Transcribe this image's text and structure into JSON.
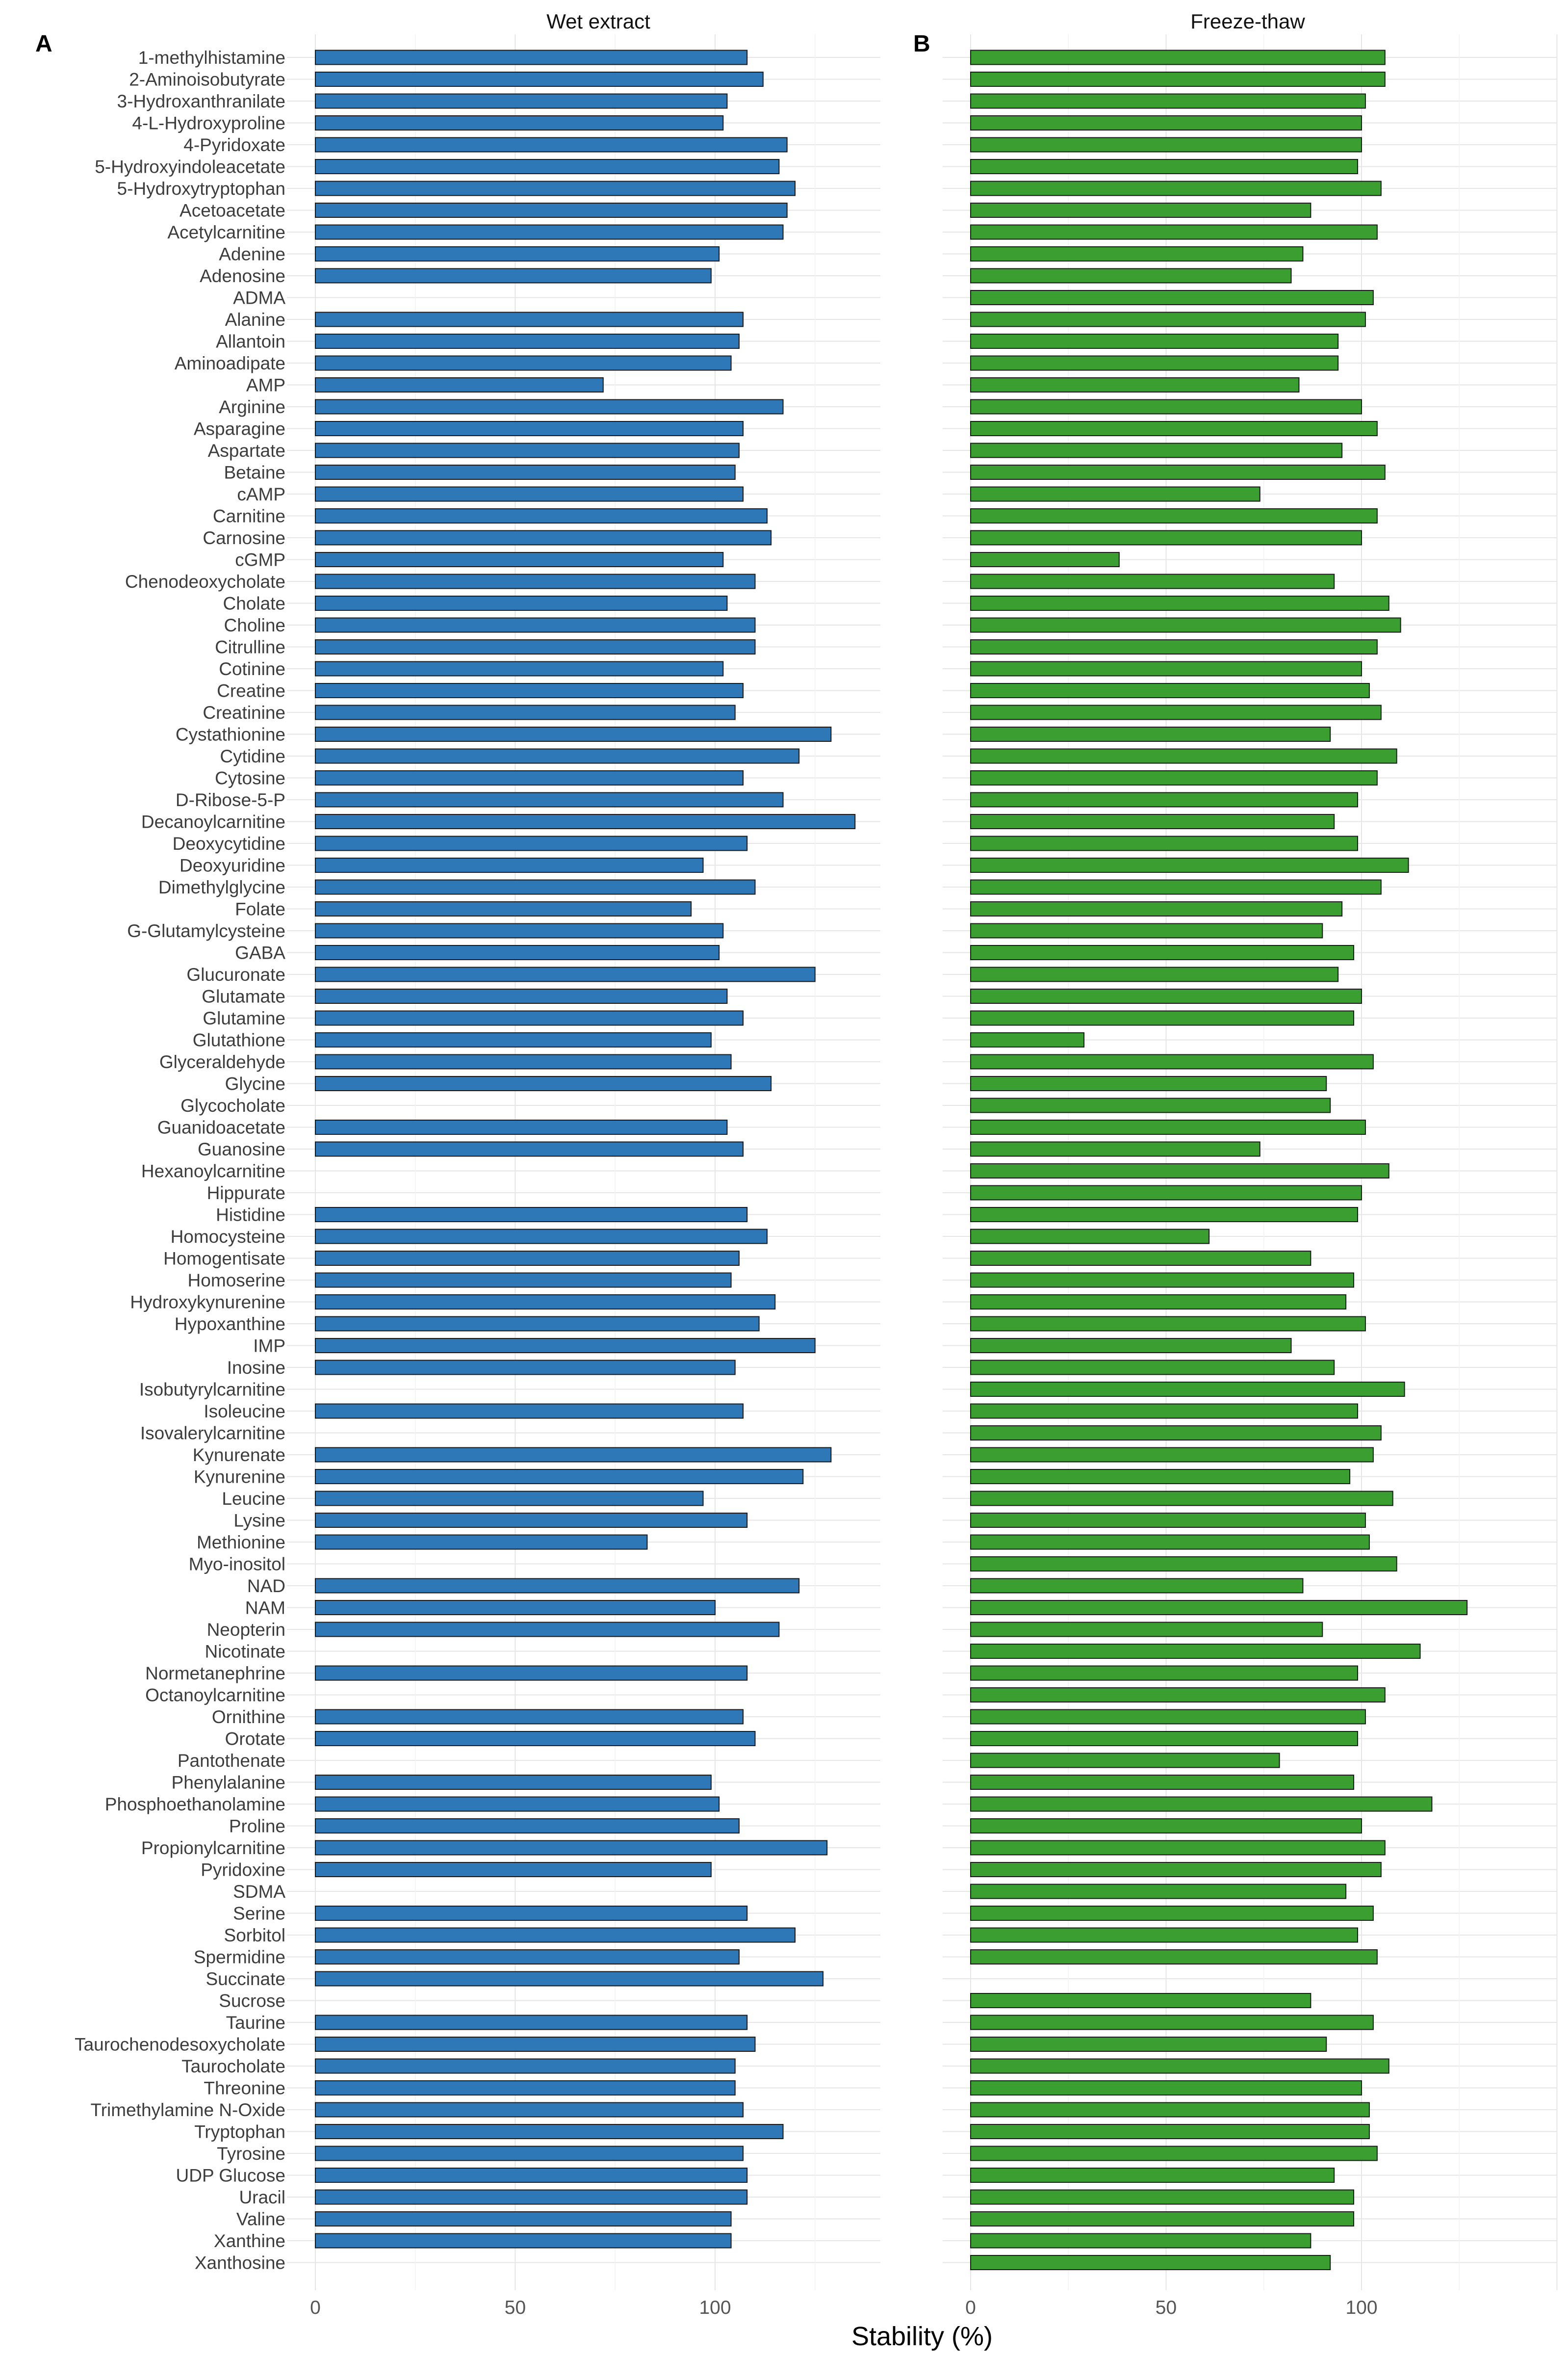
{
  "figure": {
    "xlabel": "Stability (%)",
    "colors": {
      "panel_a": "#2e78b8",
      "panel_b": "#3a9e31",
      "bar_outline": "#1a1a1a"
    }
  },
  "chart_data": [
    {
      "type": "bar",
      "orientation": "horizontal",
      "panel_letter": "A",
      "title": "Wet extract",
      "xlabel": "Stability (%)",
      "xlim": [
        -7,
        140
      ],
      "xticks": [
        0,
        50,
        100
      ],
      "categories": [
        "1-methylhistamine",
        "2-Aminoisobutyrate",
        "3-Hydroxanthranilate",
        "4-L-Hydroxyproline",
        "4-Pyridoxate",
        "5-Hydroxyindoleacetate",
        "5-Hydroxytryptophan",
        "Acetoacetate",
        "Acetylcarnitine",
        "Adenine",
        "Adenosine",
        "ADMA",
        "Alanine",
        "Allantoin",
        "Aminoadipate",
        "AMP",
        "Arginine",
        "Asparagine",
        "Aspartate",
        "Betaine",
        "cAMP",
        "Carnitine",
        "Carnosine",
        "cGMP",
        "Chenodeoxycholate",
        "Cholate",
        "Choline",
        "Citrulline",
        "Cotinine",
        "Creatine",
        "Creatinine",
        "Cystathionine",
        "Cytidine",
        "Cytosine",
        "D-Ribose-5-P",
        "Decanoylcarnitine",
        "Deoxycytidine",
        "Deoxyuridine",
        "Dimethylglycine",
        "Folate",
        "G-Glutamylcysteine",
        "GABA",
        "Glucuronate",
        "Glutamate",
        "Glutamine",
        "Glutathione",
        "Glyceraldehyde",
        "Glycine",
        "Glycocholate",
        "Guanidoacetate",
        "Guanosine",
        "Hexanoylcarnitine",
        "Hippurate",
        "Histidine",
        "Homocysteine",
        "Homogentisate",
        "Homoserine",
        "Hydroxykynurenine",
        "Hypoxanthine",
        "IMP",
        "Inosine",
        "Isobutyrylcarnitine",
        "Isoleucine",
        "Isovalerylcarnitine",
        "Kynurenate",
        "Kynurenine",
        "Leucine",
        "Lysine",
        "Methionine",
        "Myo-inositol",
        "NAD",
        "NAM",
        "Neopterin",
        "Nicotinate",
        "Normetanephrine",
        "Octanoylcarnitine",
        "Ornithine",
        "Orotate",
        "Pantothenate",
        "Phenylalanine",
        "Phosphoethanolamine",
        "Proline",
        "Propionylcarnitine",
        "Pyridoxine",
        "SDMA",
        "Serine",
        "Sorbitol",
        "Spermidine",
        "Succinate",
        "Sucrose",
        "Taurine",
        "Taurochenodesoxycholate",
        "Taurocholate",
        "Threonine",
        "Trimethylamine N-Oxide",
        "Tryptophan",
        "Tyrosine",
        "UDP Glucose",
        "Uracil",
        "Valine",
        "Xanthine",
        "Xanthosine"
      ],
      "values": [
        108,
        112,
        103,
        102,
        118,
        116,
        120,
        118,
        117,
        101,
        99,
        null,
        107,
        106,
        104,
        72,
        117,
        107,
        106,
        105,
        107,
        113,
        114,
        102,
        110,
        103,
        110,
        110,
        102,
        107,
        105,
        129,
        121,
        107,
        117,
        135,
        108,
        97,
        110,
        94,
        102,
        101,
        125,
        103,
        107,
        99,
        104,
        114,
        null,
        103,
        107,
        null,
        null,
        108,
        113,
        106,
        104,
        115,
        111,
        125,
        105,
        null,
        107,
        null,
        129,
        122,
        97,
        108,
        83,
        null,
        121,
        100,
        116,
        null,
        108,
        null,
        107,
        110,
        null,
        99,
        101,
        106,
        128,
        99,
        null,
        108,
        120,
        106,
        127,
        null,
        108,
        110,
        105,
        105,
        107,
        117,
        107,
        108,
        108,
        104,
        104,
        null
      ]
    },
    {
      "type": "bar",
      "orientation": "horizontal",
      "panel_letter": "B",
      "title": "Freeze-thaw",
      "xlabel": "Stability (%)",
      "xlim": [
        -7,
        150
      ],
      "xticks": [
        0,
        50,
        100
      ],
      "categories": [
        "1-methylhistamine",
        "2-Aminoisobutyrate",
        "3-Hydroxanthranilate",
        "4-L-Hydroxyproline",
        "4-Pyridoxate",
        "5-Hydroxyindoleacetate",
        "5-Hydroxytryptophan",
        "Acetoacetate",
        "Acetylcarnitine",
        "Adenine",
        "Adenosine",
        "ADMA",
        "Alanine",
        "Allantoin",
        "Aminoadipate",
        "AMP",
        "Arginine",
        "Asparagine",
        "Aspartate",
        "Betaine",
        "cAMP",
        "Carnitine",
        "Carnosine",
        "cGMP",
        "Chenodeoxycholate",
        "Cholate",
        "Choline",
        "Citrulline",
        "Cotinine",
        "Creatine",
        "Creatinine",
        "Cystathionine",
        "Cytidine",
        "Cytosine",
        "D-Ribose-5-P",
        "Decanoylcarnitine",
        "Deoxycytidine",
        "Deoxyuridine",
        "Dimethylglycine",
        "Folate",
        "G-Glutamylcysteine",
        "GABA",
        "Glucuronate",
        "Glutamate",
        "Glutamine",
        "Glutathione",
        "Glyceraldehyde",
        "Glycine",
        "Glycocholate",
        "Guanidoacetate",
        "Guanosine",
        "Hexanoylcarnitine",
        "Hippurate",
        "Histidine",
        "Homocysteine",
        "Homogentisate",
        "Homoserine",
        "Hydroxykynurenine",
        "Hypoxanthine",
        "IMP",
        "Inosine",
        "Isobutyrylcarnitine",
        "Isoleucine",
        "Isovalerylcarnitine",
        "Kynurenate",
        "Kynurenine",
        "Leucine",
        "Lysine",
        "Methionine",
        "Myo-inositol",
        "NAD",
        "NAM",
        "Neopterin",
        "Nicotinate",
        "Normetanephrine",
        "Octanoylcarnitine",
        "Ornithine",
        "Orotate",
        "Pantothenate",
        "Phenylalanine",
        "Phosphoethanolamine",
        "Proline",
        "Propionylcarnitine",
        "Pyridoxine",
        "SDMA",
        "Serine",
        "Sorbitol",
        "Spermidine",
        "Succinate",
        "Sucrose",
        "Taurine",
        "Taurochenodesoxycholate",
        "Taurocholate",
        "Threonine",
        "Trimethylamine N-Oxide",
        "Tryptophan",
        "Tyrosine",
        "UDP Glucose",
        "Uracil",
        "Valine",
        "Xanthine",
        "Xanthosine"
      ],
      "values": [
        106,
        106,
        101,
        100,
        100,
        99,
        105,
        87,
        104,
        85,
        82,
        103,
        101,
        94,
        94,
        84,
        100,
        104,
        95,
        106,
        74,
        104,
        100,
        38,
        93,
        107,
        110,
        104,
        100,
        102,
        105,
        92,
        109,
        104,
        99,
        93,
        99,
        112,
        105,
        95,
        90,
        98,
        94,
        100,
        98,
        29,
        103,
        91,
        92,
        101,
        74,
        107,
        100,
        99,
        61,
        87,
        98,
        96,
        101,
        82,
        93,
        111,
        99,
        105,
        103,
        97,
        108,
        101,
        102,
        109,
        85,
        127,
        90,
        115,
        99,
        106,
        101,
        99,
        79,
        98,
        118,
        100,
        106,
        105,
        96,
        103,
        99,
        104,
        null,
        87,
        103,
        91,
        107,
        100,
        102,
        102,
        104,
        93,
        98,
        98,
        87,
        92
      ]
    }
  ]
}
